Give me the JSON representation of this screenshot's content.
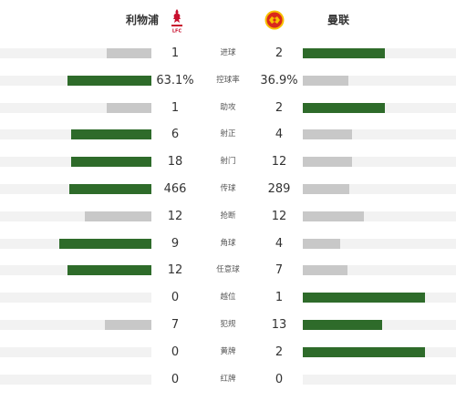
{
  "header": {
    "home_team": "利物浦",
    "away_team": "曼联",
    "home_logo_icon": "liverpool-crest-icon",
    "away_logo_icon": "manchester-united-crest-icon"
  },
  "colors": {
    "lead_bar": "#2e6b2a",
    "trail_bar": "#c8c8c8",
    "track": "#f2f2f2"
  },
  "stats": [
    {
      "label": "进球",
      "home": "1",
      "away": "2",
      "home_share": 0.333,
      "away_share": 0.667
    },
    {
      "label": "控球率",
      "home": "63.1%",
      "away": "36.9%",
      "home_share": 0.631,
      "away_share": 0.369
    },
    {
      "label": "助攻",
      "home": "1",
      "away": "2",
      "home_share": 0.333,
      "away_share": 0.667
    },
    {
      "label": "射正",
      "home": "6",
      "away": "4",
      "home_share": 0.6,
      "away_share": 0.4
    },
    {
      "label": "射门",
      "home": "18",
      "away": "12",
      "home_share": 0.6,
      "away_share": 0.4
    },
    {
      "label": "传球",
      "home": "466",
      "away": "289",
      "home_share": 0.617,
      "away_share": 0.383
    },
    {
      "label": "抢断",
      "home": "12",
      "away": "12",
      "home_share": 0.5,
      "away_share": 0.5
    },
    {
      "label": "角球",
      "home": "9",
      "away": "4",
      "home_share": 0.692,
      "away_share": 0.308
    },
    {
      "label": "任意球",
      "home": "12",
      "away": "7",
      "home_share": 0.632,
      "away_share": 0.368
    },
    {
      "label": "越位",
      "home": "0",
      "away": "1",
      "home_share": 0.0,
      "away_share": 1.0
    },
    {
      "label": "犯规",
      "home": "7",
      "away": "13",
      "home_share": 0.35,
      "away_share": 0.65
    },
    {
      "label": "黄牌",
      "home": "0",
      "away": "2",
      "home_share": 0.0,
      "away_share": 1.0
    },
    {
      "label": "红牌",
      "home": "0",
      "away": "0",
      "home_share": 0.0,
      "away_share": 0.0
    }
  ]
}
